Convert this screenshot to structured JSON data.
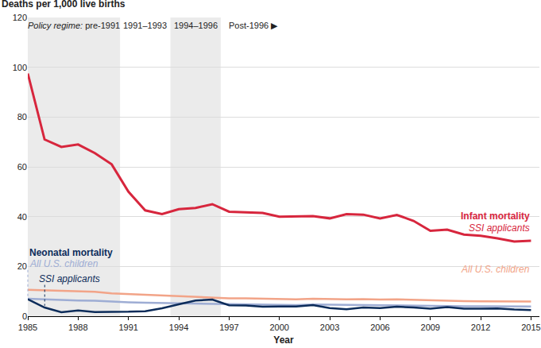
{
  "chart_data": {
    "type": "line",
    "y_label": "Deaths per 1,000 live births",
    "x_label": "Year",
    "xlim": [
      1985,
      2015.5
    ],
    "xticks": [
      1985,
      1988,
      1991,
      1994,
      1997,
      2000,
      2003,
      2006,
      2009,
      2012,
      2015
    ],
    "ylim": [
      0,
      120
    ],
    "yticks": [
      0,
      20,
      40,
      60,
      80,
      100,
      120
    ],
    "grid": true,
    "regime_title": "Policy regime:",
    "regimes": [
      {
        "label": "pre-1991",
        "start": 1985,
        "end": 1990.5,
        "shaded": true
      },
      {
        "label": "1991–1993",
        "start": 1990.5,
        "end": 1993.5,
        "shaded": false
      },
      {
        "label": "1994–1996",
        "start": 1993.5,
        "end": 1996.5,
        "shaded": true
      },
      {
        "label": "Post-1996 ▶",
        "start": 1996.5,
        "shaded": false
      }
    ],
    "x": [
      1985,
      1986,
      1987,
      1988,
      1989,
      1990,
      1991,
      1992,
      1993,
      1994,
      1995,
      1996,
      1997,
      1998,
      1999,
      2000,
      2001,
      2002,
      2003,
      2004,
      2005,
      2006,
      2007,
      2008,
      2009,
      2010,
      2011,
      2012,
      2013,
      2014,
      2015
    ],
    "series": [
      {
        "group": "Infant mortality",
        "name": "All U.S. children",
        "color": "#f2a488",
        "values": [
          10.6,
          10.4,
          10.1,
          10.0,
          9.8,
          9.2,
          8.9,
          8.5,
          8.4,
          8.0,
          7.6,
          7.3,
          7.2,
          7.2,
          7.1,
          6.9,
          6.8,
          7.0,
          6.8,
          6.8,
          6.9,
          6.7,
          6.8,
          6.6,
          6.4,
          6.1,
          6.1,
          6.0,
          6.0,
          5.8,
          5.9
        ]
      },
      {
        "group": "Neonatal mortality",
        "name": "All U.S. children",
        "color": "#9eadd4",
        "values": [
          7.0,
          6.7,
          6.5,
          6.3,
          6.2,
          5.8,
          5.6,
          5.4,
          5.3,
          5.1,
          4.9,
          4.8,
          4.8,
          4.8,
          4.7,
          4.6,
          4.5,
          4.7,
          4.6,
          4.5,
          4.5,
          4.5,
          4.4,
          4.3,
          4.2,
          4.1,
          4.0,
          4.0,
          4.0,
          3.9,
          3.9
        ]
      },
      {
        "group": "Neonatal mortality",
        "name": "SSI applicants",
        "color": "#0c2c5a",
        "values": [
          6.8,
          3.5,
          1.6,
          2.3,
          1.7,
          1.7,
          1.8,
          2.0,
          3.2,
          4.8,
          6.3,
          6.7,
          4.4,
          4.3,
          3.8,
          3.9,
          3.9,
          4.5,
          3.3,
          2.8,
          3.5,
          3.3,
          3.8,
          3.5,
          3.0,
          3.7,
          3.0,
          3.0,
          3.1,
          2.7,
          2.5
        ]
      },
      {
        "group": "Infant mortality",
        "name": "SSI applicants",
        "color": "#d7263d",
        "values": [
          97.5,
          71,
          68,
          69,
          65.5,
          61,
          50,
          42.5,
          41,
          43,
          43.5,
          45,
          42,
          41.8,
          41.5,
          40,
          40,
          40.2,
          39.3,
          41,
          40.8,
          39.3,
          40.7,
          38.3,
          34.3,
          34.8,
          32.8,
          32.3,
          31.3,
          30,
          30.3
        ]
      }
    ]
  }
}
